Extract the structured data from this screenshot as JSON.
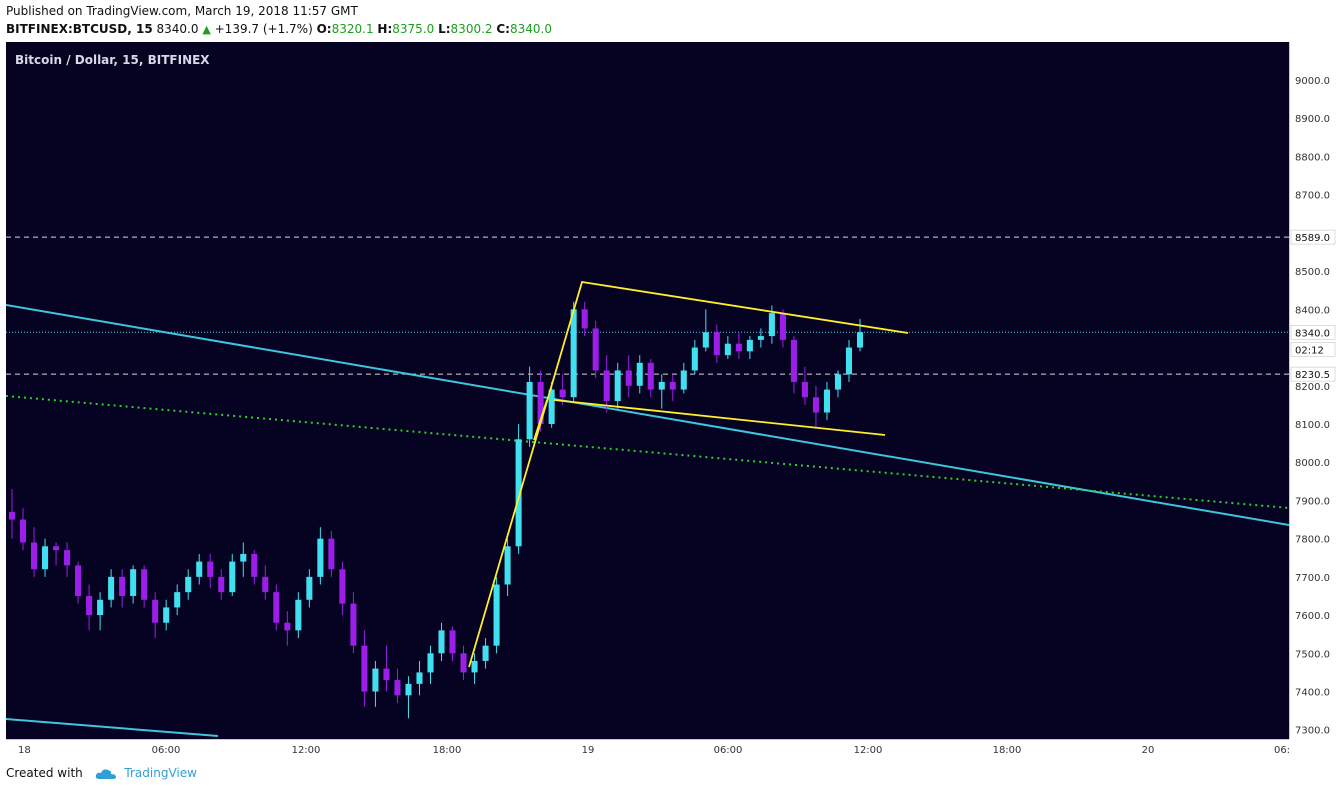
{
  "header": {
    "published": "Published on TradingView.com, March 19, 2018 11:57 GMT",
    "symbol": "BITFINEX:BTCUSD, 15",
    "last": "8340.0",
    "change": "+139.7 (+1.7%)",
    "o_label": "O:",
    "o": "8320.1",
    "h_label": "H:",
    "h": "8375.0",
    "l_label": "L:",
    "l": "8300.2",
    "c_label": "C:",
    "c": "8340.0"
  },
  "legend": "Bitcoin / Dollar, 15, BITFINEX",
  "footer": {
    "created": "Created with",
    "brand": "TradingView"
  },
  "colors": {
    "background": "#060221",
    "bull": "#40e0f0",
    "bear": "#9b1fe8",
    "trendline": "#3ec6dc",
    "channel": "#ffee2a",
    "dotted": "#2ad22a"
  },
  "chart_data": {
    "type": "candlestick",
    "y_ticks": [
      9000,
      8900,
      8800,
      8700,
      8600,
      8500,
      8400,
      8300,
      8200,
      8100,
      8000,
      7900,
      7800,
      7700,
      7600,
      7500,
      7400,
      7300
    ],
    "y_tick_labels": [
      "9000.0",
      "8900.0",
      "8800.0",
      "8700.0",
      "8600.0",
      "8500.0",
      "8400.0",
      "8300.0",
      "8200.0",
      "8100.0",
      "8000.0",
      "7900.0",
      "7800.0",
      "7700.0",
      "7600.0",
      "7500.0",
      "7400.0",
      "7300.0"
    ],
    "x_tick_labels": [
      "18",
      "06:00",
      "12:00",
      "18:00",
      "19",
      "06:00",
      "12:00",
      "18:00",
      "20",
      "06:"
    ],
    "price_labels": {
      "last": "8340.0",
      "countdown": "02:12",
      "level_high": "8589.0",
      "level_low": "8230.5"
    },
    "horizontal_levels": [
      8589.0,
      8230.5
    ],
    "last_price": 8340.0,
    "candles": [
      [
        7870,
        7930,
        7800,
        7850
      ],
      [
        7850,
        7880,
        7770,
        7790
      ],
      [
        7790,
        7830,
        7700,
        7720
      ],
      [
        7720,
        7800,
        7700,
        7780
      ],
      [
        7780,
        7790,
        7730,
        7770
      ],
      [
        7770,
        7790,
        7700,
        7730
      ],
      [
        7730,
        7740,
        7630,
        7650
      ],
      [
        7650,
        7680,
        7560,
        7600
      ],
      [
        7600,
        7660,
        7560,
        7640
      ],
      [
        7640,
        7720,
        7620,
        7700
      ],
      [
        7700,
        7720,
        7620,
        7650
      ],
      [
        7650,
        7730,
        7630,
        7720
      ],
      [
        7720,
        7730,
        7620,
        7640
      ],
      [
        7640,
        7660,
        7540,
        7580
      ],
      [
        7580,
        7640,
        7560,
        7620
      ],
      [
        7620,
        7680,
        7600,
        7660
      ],
      [
        7660,
        7720,
        7640,
        7700
      ],
      [
        7700,
        7760,
        7680,
        7740
      ],
      [
        7740,
        7760,
        7670,
        7700
      ],
      [
        7700,
        7720,
        7640,
        7660
      ],
      [
        7660,
        7760,
        7650,
        7740
      ],
      [
        7740,
        7790,
        7700,
        7760
      ],
      [
        7760,
        7770,
        7680,
        7700
      ],
      [
        7700,
        7730,
        7640,
        7660
      ],
      [
        7660,
        7680,
        7560,
        7580
      ],
      [
        7580,
        7610,
        7520,
        7560
      ],
      [
        7560,
        7660,
        7540,
        7640
      ],
      [
        7640,
        7720,
        7620,
        7700
      ],
      [
        7700,
        7830,
        7680,
        7800
      ],
      [
        7800,
        7820,
        7700,
        7720
      ],
      [
        7720,
        7740,
        7600,
        7630
      ],
      [
        7630,
        7660,
        7500,
        7520
      ],
      [
        7520,
        7560,
        7360,
        7400
      ],
      [
        7400,
        7480,
        7360,
        7460
      ],
      [
        7460,
        7520,
        7400,
        7430
      ],
      [
        7430,
        7460,
        7370,
        7390
      ],
      [
        7390,
        7440,
        7330,
        7420
      ],
      [
        7420,
        7480,
        7390,
        7450
      ],
      [
        7450,
        7520,
        7420,
        7500
      ],
      [
        7500,
        7580,
        7480,
        7560
      ],
      [
        7560,
        7570,
        7480,
        7500
      ],
      [
        7500,
        7520,
        7430,
        7450
      ],
      [
        7450,
        7500,
        7420,
        7480
      ],
      [
        7480,
        7540,
        7460,
        7520
      ],
      [
        7520,
        7700,
        7500,
        7680
      ],
      [
        7680,
        7800,
        7650,
        7780
      ],
      [
        7780,
        8100,
        7760,
        8060
      ],
      [
        8060,
        8250,
        8040,
        8210
      ],
      [
        8210,
        8240,
        8080,
        8100
      ],
      [
        8100,
        8210,
        8090,
        8190
      ],
      [
        8190,
        8230,
        8150,
        8170
      ],
      [
        8170,
        8420,
        8160,
        8400
      ],
      [
        8400,
        8420,
        8330,
        8350
      ],
      [
        8350,
        8370,
        8220,
        8240
      ],
      [
        8240,
        8280,
        8130,
        8160
      ],
      [
        8160,
        8260,
        8140,
        8240
      ],
      [
        8240,
        8280,
        8170,
        8200
      ],
      [
        8200,
        8280,
        8180,
        8260
      ],
      [
        8260,
        8270,
        8170,
        8190
      ],
      [
        8190,
        8230,
        8140,
        8210
      ],
      [
        8210,
        8230,
        8160,
        8190
      ],
      [
        8190,
        8260,
        8180,
        8240
      ],
      [
        8240,
        8320,
        8230,
        8300
      ],
      [
        8300,
        8400,
        8290,
        8340
      ],
      [
        8340,
        8360,
        8260,
        8280
      ],
      [
        8280,
        8330,
        8270,
        8310
      ],
      [
        8310,
        8340,
        8270,
        8290
      ],
      [
        8290,
        8330,
        8270,
        8320
      ],
      [
        8320,
        8350,
        8300,
        8330
      ],
      [
        8330,
        8410,
        8310,
        8390
      ],
      [
        8390,
        8400,
        8300,
        8320
      ],
      [
        8320,
        8330,
        8180,
        8210
      ],
      [
        8210,
        8250,
        8150,
        8170
      ],
      [
        8170,
        8200,
        8090,
        8130
      ],
      [
        8130,
        8210,
        8110,
        8190
      ],
      [
        8190,
        8240,
        8170,
        8230
      ],
      [
        8230,
        8320,
        8210,
        8300
      ],
      [
        8300,
        8375,
        8290,
        8340
      ]
    ]
  }
}
